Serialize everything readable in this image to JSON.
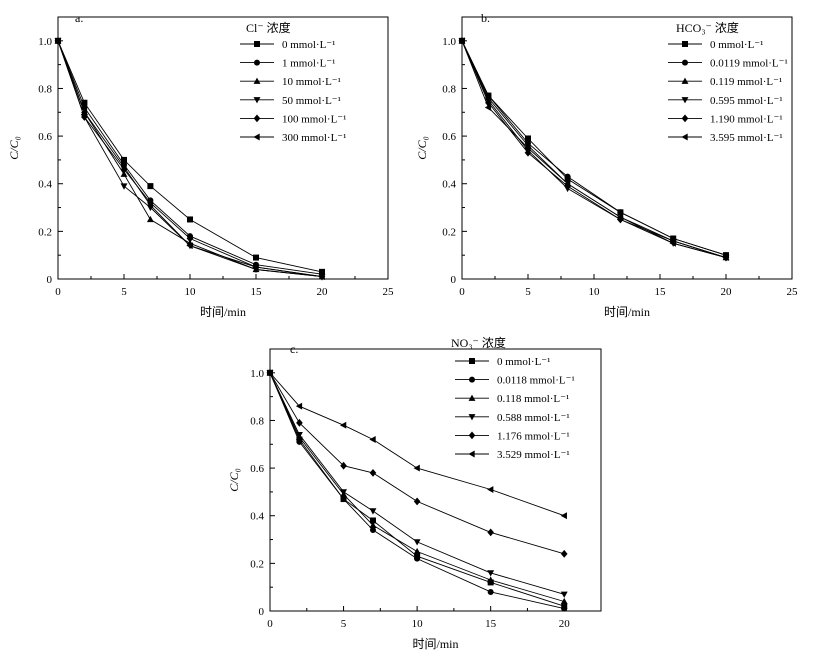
{
  "chart_data": [
    {
      "type": "line",
      "panel_label": "a.",
      "legend_title": "Cl⁻ 浓度",
      "xlabel": "时间/min",
      "ylabel": "C/C₀",
      "xlim": [
        0,
        25
      ],
      "ylim": [
        0,
        1.1
      ],
      "x_ticks": [
        "0",
        "5",
        "10",
        "15",
        "20",
        "25"
      ],
      "y_ticks": [
        "0",
        "0.2",
        "0.4",
        "0.6",
        "0.8",
        "1.0"
      ],
      "series": [
        {
          "name": "0 mmol·L⁻¹",
          "marker": "square",
          "x": [
            0,
            2,
            5,
            7,
            10,
            15,
            20
          ],
          "values": [
            1.0,
            0.74,
            0.5,
            0.39,
            0.25,
            0.09,
            0.03
          ]
        },
        {
          "name": "1 mmol·L⁻¹",
          "marker": "circle",
          "x": [
            0,
            2,
            5,
            7,
            10,
            15,
            20
          ],
          "values": [
            1.0,
            0.72,
            0.48,
            0.33,
            0.18,
            0.06,
            0.02
          ]
        },
        {
          "name": "10 mmol·L⁻¹",
          "marker": "triangle-up",
          "x": [
            0,
            2,
            5,
            7,
            10,
            15,
            20
          ],
          "values": [
            1.0,
            0.7,
            0.44,
            0.25,
            0.15,
            0.04,
            0.01
          ]
        },
        {
          "name": "50 mmol·L⁻¹",
          "marker": "triangle-down",
          "x": [
            0,
            2,
            5,
            7,
            10,
            15,
            20
          ],
          "values": [
            1.0,
            0.68,
            0.39,
            0.3,
            0.14,
            0.04,
            0.01
          ]
        },
        {
          "name": "100 mmol·L⁻¹",
          "marker": "diamond",
          "x": [
            0,
            2,
            5,
            7,
            10,
            15,
            20
          ],
          "values": [
            1.0,
            0.68,
            0.46,
            0.32,
            0.17,
            0.05,
            0.01
          ]
        },
        {
          "name": "300 mmol·L⁻¹",
          "marker": "triangle-left",
          "x": [
            0,
            2,
            5,
            7,
            10,
            15,
            20
          ],
          "values": [
            1.0,
            0.7,
            0.47,
            0.31,
            0.14,
            0.05,
            0.01
          ]
        }
      ]
    },
    {
      "type": "line",
      "panel_label": "b.",
      "legend_title": "HCO₃⁻ 浓度",
      "xlabel": "时间/min",
      "ylabel": "C/C₀",
      "xlim": [
        0,
        25
      ],
      "ylim": [
        0,
        1.1
      ],
      "x_ticks": [
        "0",
        "5",
        "10",
        "15",
        "20",
        "25"
      ],
      "y_ticks": [
        "0",
        "0.2",
        "0.4",
        "0.6",
        "0.8",
        "1.0"
      ],
      "series": [
        {
          "name": "0 mmol·L⁻¹",
          "marker": "square",
          "x": [
            0,
            2,
            5,
            8,
            12,
            16,
            20
          ],
          "values": [
            1.0,
            0.77,
            0.59,
            0.42,
            0.28,
            0.17,
            0.1
          ]
        },
        {
          "name": "0.0119 mmol·L⁻¹",
          "marker": "circle",
          "x": [
            0,
            2,
            5,
            8,
            12,
            16,
            20
          ],
          "values": [
            1.0,
            0.77,
            0.57,
            0.43,
            0.28,
            0.17,
            0.1
          ]
        },
        {
          "name": "0.119 mmol·L⁻¹",
          "marker": "triangle-up",
          "x": [
            0,
            2,
            5,
            8,
            12,
            16,
            20
          ],
          "values": [
            1.0,
            0.76,
            0.56,
            0.4,
            0.26,
            0.16,
            0.09
          ]
        },
        {
          "name": "0.595 mmol·L⁻¹",
          "marker": "triangle-down",
          "x": [
            0,
            2,
            5,
            8,
            12,
            16,
            20
          ],
          "values": [
            1.0,
            0.75,
            0.54,
            0.38,
            0.25,
            0.15,
            0.09
          ]
        },
        {
          "name": "1.190 mmol·L⁻¹",
          "marker": "diamond",
          "x": [
            0,
            2,
            5,
            8,
            12,
            16,
            20
          ],
          "values": [
            1.0,
            0.74,
            0.53,
            0.39,
            0.25,
            0.16,
            0.09
          ]
        },
        {
          "name": "3.595 mmol·L⁻¹",
          "marker": "triangle-left",
          "x": [
            0,
            2,
            5,
            8,
            12,
            16,
            20
          ],
          "values": [
            1.0,
            0.72,
            0.55,
            0.4,
            0.26,
            0.15,
            0.09
          ]
        }
      ]
    },
    {
      "type": "line",
      "panel_label": "c.",
      "legend_title": "NO₃⁻ 浓度",
      "xlabel": "时间/min",
      "ylabel": "C/C₀",
      "xlim": [
        0,
        22.5
      ],
      "ylim": [
        0,
        1.1
      ],
      "x_ticks": [
        "0",
        "5",
        "10",
        "15",
        "20"
      ],
      "y_ticks": [
        "0",
        "0.2",
        "0.4",
        "0.6",
        "0.8",
        "1.0"
      ],
      "series": [
        {
          "name": "0 mmol·L⁻¹",
          "marker": "square",
          "x": [
            0,
            2,
            5,
            7,
            10,
            15,
            20
          ],
          "values": [
            1.0,
            0.72,
            0.47,
            0.38,
            0.23,
            0.12,
            0.02
          ]
        },
        {
          "name": "0.0118 mmol·L⁻¹",
          "marker": "circle",
          "x": [
            0,
            2,
            5,
            7,
            10,
            15,
            20
          ],
          "values": [
            1.0,
            0.71,
            0.47,
            0.34,
            0.22,
            0.08,
            0.01
          ]
        },
        {
          "name": "0.118 mmol·L⁻¹",
          "marker": "triangle-up",
          "x": [
            0,
            2,
            5,
            7,
            10,
            15,
            20
          ],
          "values": [
            1.0,
            0.73,
            0.49,
            0.36,
            0.25,
            0.13,
            0.04
          ]
        },
        {
          "name": "0.588 mmol·L⁻¹",
          "marker": "triangle-down",
          "x": [
            0,
            2,
            5,
            7,
            10,
            15,
            20
          ],
          "values": [
            1.0,
            0.74,
            0.5,
            0.42,
            0.29,
            0.16,
            0.07
          ]
        },
        {
          "name": "1.176 mmol·L⁻¹",
          "marker": "diamond",
          "x": [
            0,
            2,
            5,
            7,
            10,
            15,
            20
          ],
          "values": [
            1.0,
            0.79,
            0.61,
            0.58,
            0.46,
            0.33,
            0.24
          ]
        },
        {
          "name": "3.529 mmol·L⁻¹",
          "marker": "triangle-left",
          "x": [
            0,
            2,
            5,
            7,
            10,
            15,
            20
          ],
          "values": [
            1.0,
            0.86,
            0.78,
            0.72,
            0.6,
            0.51,
            0.4
          ]
        }
      ]
    }
  ]
}
